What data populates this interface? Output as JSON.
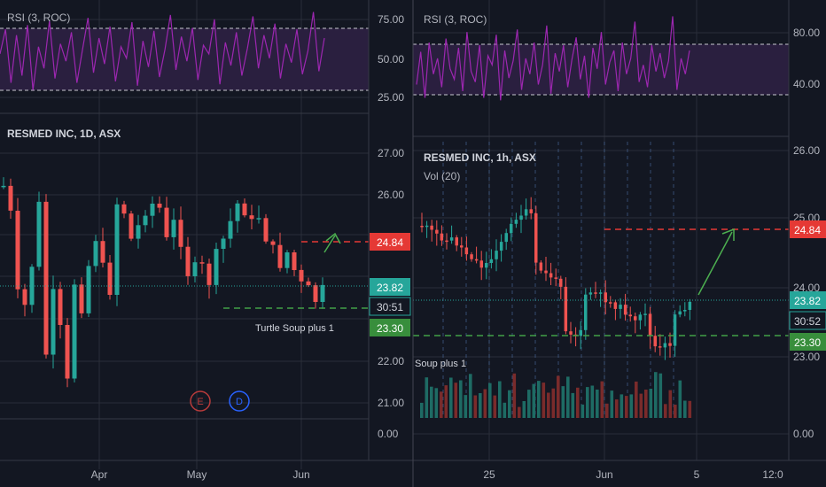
{
  "colors": {
    "background": "#131722",
    "grid": "#2a2e39",
    "divider": "#363a45",
    "up": "#26a69a",
    "down": "#ef5350",
    "rsi_line": "#9c27b0",
    "rsi_band": "#2a1f3f",
    "axis_text": "#b2b5be",
    "target_red": "#e53935",
    "stop_green": "#43a047",
    "arrow_green": "#4caf50",
    "price_line": "#26a69a"
  },
  "left_panel": {
    "rsi_title": "RSI (3, ROC)",
    "rsi_ticks": [
      "75.00",
      "50.00",
      "25.00"
    ],
    "price_title": "RESMED INC, 1D, ASX",
    "price_ticks": [
      "27.00",
      "26.00",
      "22.00",
      "21.00",
      "0.00"
    ],
    "label_target": "24.84",
    "label_last": "23.82",
    "label_countdown": "30:51",
    "label_stop": "23.30",
    "annotation": "Turtle Soup plus 1",
    "event_earnings": "E",
    "event_dividend": "D",
    "x_labels": [
      "Apr",
      "May",
      "Jun"
    ]
  },
  "right_panel": {
    "rsi_title": "RSI (3, ROC)",
    "rsi_ticks": [
      "80.00",
      "40.00"
    ],
    "price_title": "RESMED INC, 1h, ASX",
    "volume_title": "Vol (20)",
    "price_ticks": [
      "26.00",
      "25.00",
      "24.00",
      "23.00",
      "0.00"
    ],
    "label_target": "24.84",
    "label_last": "23.82",
    "label_countdown": "30:52",
    "label_stop": "23.30",
    "annotation": "Soup plus 1",
    "x_labels": [
      "25",
      "Jun",
      "5",
      "12:0"
    ]
  },
  "chart_data": [
    {
      "type": "line",
      "title": "RSI (3, ROC)",
      "timeframe": "1D",
      "ylim": [
        20,
        85
      ],
      "bands": [
        70,
        30
      ],
      "values": [
        55,
        72,
        35,
        68,
        40,
        75,
        30,
        60,
        45,
        78,
        38,
        62,
        50,
        70,
        35,
        58,
        80,
        42,
        66,
        48,
        74,
        36,
        60,
        52,
        77,
        33,
        64,
        46,
        71,
        39,
        58,
        82,
        44,
        67,
        50,
        73,
        37,
        61,
        55,
        79,
        34,
        63,
        47,
        70,
        40,
        59,
        81,
        45,
        68,
        52,
        76,
        38,
        62,
        49,
        72,
        41,
        57,
        84,
        43,
        66
      ]
    },
    {
      "type": "candlestick",
      "title": "RESMED INC, 1D, ASX",
      "timeframe": "1D",
      "x_labels": [
        "Apr",
        "May",
        "Jun"
      ],
      "levels": {
        "target": 24.84,
        "last": 23.82,
        "stop": 23.3
      },
      "annotation": "Turtle Soup plus 1",
      "events": [
        "E",
        "D"
      ]
    },
    {
      "type": "line",
      "title": "RSI (3, ROC)",
      "timeframe": "1h",
      "ylim": [
        10,
        95
      ],
      "bands": [
        70,
        30
      ],
      "values": [
        40,
        65,
        30,
        72,
        48,
        60,
        38,
        75,
        52,
        44,
        68,
        35,
        80,
        50,
        42,
        70,
        30,
        62,
        55,
        78,
        28,
        66,
        45,
        58,
        82,
        36,
        60,
        48,
        72,
        40,
        55,
        85,
        33,
        64,
        50,
        70,
        38,
        59,
        76,
        44,
        62,
        30,
        68,
        52,
        80,
        40,
        57,
        66,
        35,
        72,
        48,
        60,
        88,
        42,
        55,
        38,
        70,
        50,
        64,
        45,
        58,
        92,
        36,
        60,
        48,
        66
      ]
    },
    {
      "type": "candlestick",
      "title": "RESMED INC, 1h, ASX",
      "timeframe": "1h",
      "x_labels": [
        "25",
        "Jun",
        "5",
        "12:0"
      ],
      "levels": {
        "target": 24.84,
        "last": 23.82,
        "stop": 23.3
      },
      "annotation": "Soup plus 1",
      "volume_indicator": "Vol (20)"
    }
  ]
}
